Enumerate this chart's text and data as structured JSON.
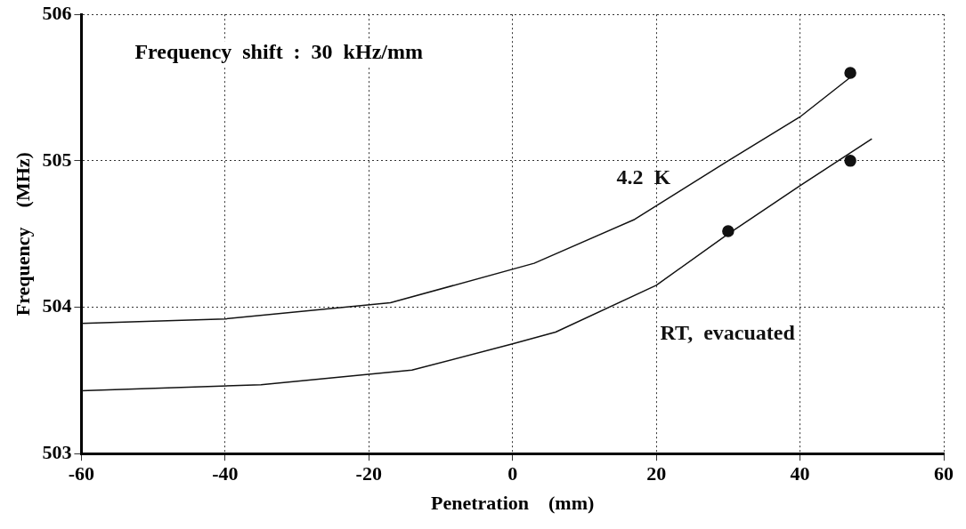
{
  "chart_data": {
    "type": "line",
    "xlabel": "Penetration    (mm)",
    "ylabel": "Frequency    (MHz)",
    "xlim": [
      -60,
      60
    ],
    "xticks": [
      -60,
      -40,
      -20,
      0,
      20,
      40,
      60
    ],
    "ylim": [
      503,
      506
    ],
    "yticks": [
      503,
      504,
      505,
      506
    ],
    "grid": true,
    "line_style": "solid",
    "series": [
      {
        "name": "4.2  K",
        "color": "#111111",
        "marker": "none",
        "x": [
          -60,
          -40,
          -17,
          3,
          17,
          30,
          40,
          47
        ],
        "values": [
          503.89,
          503.92,
          504.03,
          504.3,
          504.6,
          505.0,
          505.3,
          505.57
        ]
      },
      {
        "name": "RT,  evacuated",
        "color": "#111111",
        "marker": "none",
        "x": [
          -60,
          -35,
          -14,
          0,
          6,
          20,
          30,
          40,
          50
        ],
        "values": [
          503.43,
          503.47,
          503.57,
          503.75,
          503.83,
          504.15,
          504.5,
          504.83,
          505.15
        ]
      },
      {
        "type": "scatter",
        "color": "#111111",
        "marker": "circle",
        "x": [
          47
        ],
        "values": [
          505.6
        ]
      },
      {
        "type": "scatter",
        "color": "#111111",
        "marker": "circle",
        "x": [
          30,
          47
        ],
        "values": [
          504.52,
          505.0
        ]
      }
    ],
    "annotations": [
      "Frequency  shift  :  30  kHz/mm"
    ]
  }
}
